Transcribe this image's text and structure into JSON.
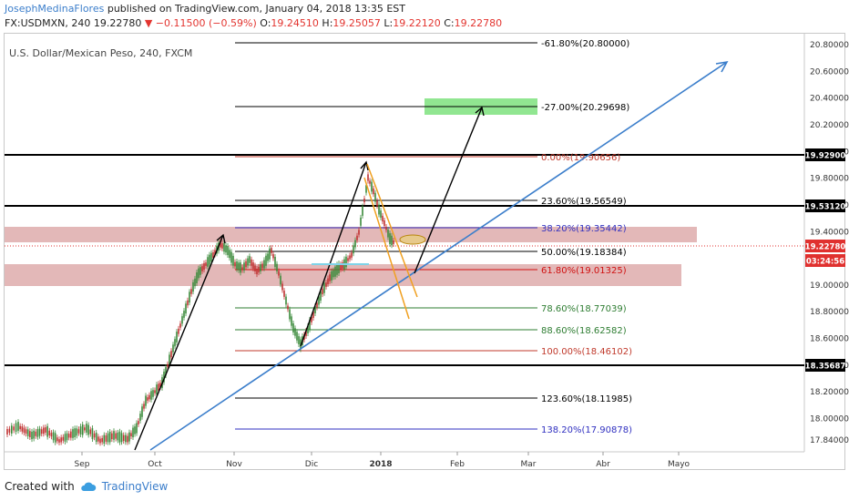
{
  "header": {
    "author": "JosephMedinaFlores",
    "published": " published on TradingView.com, January 04, 2018 13:35 EST",
    "symbol": "FX:USDMXN, 240",
    "last": "19.22780",
    "change": "−0.11500 (−0.59%)",
    "o_label": "O:",
    "o": "19.24510",
    "h_label": "H:",
    "h": "19.25057",
    "l_label": "L:",
    "l": "19.22120",
    "c_label": "C:",
    "c": "19.22780"
  },
  "chart": {
    "title": "U.S. Dollar/Mexican Peso, 240, FXCM",
    "price_axis": [
      "20.80000",
      "20.60000",
      "20.40000",
      "20.20000",
      "20.00000",
      "19.80000",
      "19.60000",
      "19.40000",
      "19.00000",
      "18.80000",
      "18.60000",
      "18.40000",
      "18.20000",
      "18.00000",
      "17.84000"
    ],
    "price_badges": [
      {
        "label": "19.92900",
        "bg": "#000000"
      },
      {
        "label": "19.53120",
        "bg": "#000000"
      },
      {
        "label": "19.22780",
        "bg": "#e0312f"
      },
      {
        "label": "03:24:56",
        "bg": "#e0312f"
      },
      {
        "label": "18.35687",
        "bg": "#000000"
      }
    ],
    "time_axis": [
      "Sep",
      "Oct",
      "Nov",
      "Dic",
      "2018",
      "Feb",
      "Mar",
      "Abr",
      "Mayo"
    ],
    "fib_levels": [
      {
        "label": "-61.80%(20.80000)",
        "color": "#000000"
      },
      {
        "label": "-27.00%(20.29698)",
        "color": "#000000"
      },
      {
        "label": "0.00%(19.90656)",
        "color": "#c0392b"
      },
      {
        "label": "23.60%(19.56549)",
        "color": "#000000"
      },
      {
        "label": "38.20%(19.35442)",
        "color": "#3030c0"
      },
      {
        "label": "50.00%(19.18384)",
        "color": "#000000"
      },
      {
        "label": "61.80%(19.01325)",
        "color": "#d01010"
      },
      {
        "label": "78.60%(18.77039)",
        "color": "#2e7d32"
      },
      {
        "label": "88.60%(18.62582)",
        "color": "#2e7d32"
      },
      {
        "label": "100.00%(18.46102)",
        "color": "#c0392b"
      },
      {
        "label": "123.60%(18.11985)",
        "color": "#000000"
      },
      {
        "label": "138.20%(17.90878)",
        "color": "#3030c0"
      }
    ]
  },
  "footer": {
    "created_with": "Created with",
    "brand": "TradingView"
  }
}
